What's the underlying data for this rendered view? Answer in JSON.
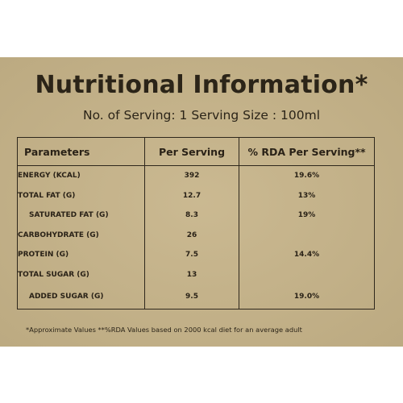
{
  "title": "Nutritional Information*",
  "subtitle": "No. of Serving: 1  Serving Size : 100ml",
  "table": {
    "headers": [
      "Parameters",
      "Per Serving",
      "% RDA Per Serving**"
    ],
    "rows": [
      {
        "name": "ENERGY (KCAL)",
        "value": "392",
        "rda": "19.6%"
      },
      {
        "name": "TOTAL FAT (G)",
        "value": "12.7",
        "rda": "13%"
      },
      {
        "name": "SATURATED FAT (G)",
        "value": "8.3",
        "rda": "19%"
      },
      {
        "name": "CARBOHYDRATE (G)",
        "value": "26",
        "rda": ""
      },
      {
        "name": "PROTEIN (G)",
        "value": "7.5",
        "rda": "14.4%"
      },
      {
        "name": "TOTAL SUGAR (G)",
        "value": "13",
        "rda": ""
      },
      {
        "name": "ADDED SUGAR (G)",
        "value": "9.5",
        "rda": "19.0%"
      }
    ]
  },
  "footnote": "*Approximate Values **%RDA Values based on 2000 kcal diet for an average adult",
  "colors": {
    "panel": "#c6b388",
    "ink": "#2a2217"
  }
}
